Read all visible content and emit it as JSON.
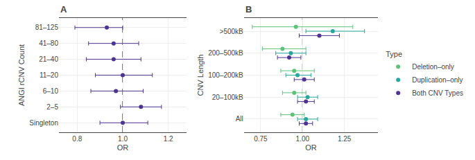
{
  "chart_data": [
    {
      "type": "forest",
      "title": "A",
      "xlabel": "OR",
      "ylabel": "ANGI rCNV Count",
      "xlim": [
        0.72,
        1.28
      ],
      "xticks": [
        0.8,
        {
          "value": 1.0,
          "label": "1.0"
        },
        1.2
      ],
      "vline": 1.0,
      "grid": true,
      "categories": [
        "81–125",
        "41–80",
        "21–40",
        "11–20",
        "6–10",
        "2–5",
        "Singleton"
      ],
      "series": [
        {
          "color": "#4e3391",
          "values": [
            0.93,
            0.96,
            0.96,
            1.0,
            0.97,
            1.08,
            1.0
          ],
          "low": [
            0.79,
            0.85,
            0.84,
            0.88,
            0.86,
            0.99,
            0.9
          ],
          "high": [
            1.0,
            1.07,
            1.08,
            1.13,
            1.09,
            1.17,
            1.11
          ]
        }
      ]
    },
    {
      "type": "forest",
      "title": "B",
      "xlabel": "OR",
      "ylabel": "CNV Length",
      "xlim": [
        0.65,
        1.45
      ],
      "xticks": [
        0.75,
        {
          "value": 1.0,
          "label": "1.00"
        },
        1.25
      ],
      "vline": 1.0,
      "grid": true,
      "legend": "right",
      "legend_title": "Type",
      "categories": [
        ">500kB",
        "200–500kB",
        "100–200kB",
        "20–100kB",
        "All"
      ],
      "series": [
        {
          "name": "Deletion–only",
          "color": "#5ec27a",
          "values": [
            0.96,
            0.88,
            0.95,
            0.95,
            0.94
          ],
          "low": [
            0.7,
            0.76,
            0.87,
            0.88,
            0.87
          ],
          "high": [
            1.3,
            1.02,
            1.07,
            1.02,
            1.01
          ]
        },
        {
          "name": "Duplication–only",
          "color": "#27a89e",
          "values": [
            1.18,
            0.93,
            0.97,
            1.03,
            1.02
          ],
          "low": [
            1.02,
            0.84,
            0.9,
            0.97,
            0.97
          ],
          "high": [
            1.37,
            1.02,
            1.05,
            1.09,
            1.09
          ]
        },
        {
          "name": "Both CNV Types",
          "color": "#4e3391",
          "values": [
            1.1,
            0.92,
            1.01,
            1.02,
            1.02
          ],
          "low": [
            0.98,
            0.85,
            0.95,
            0.97,
            0.98
          ],
          "high": [
            1.22,
            0.99,
            1.07,
            1.07,
            1.06
          ]
        }
      ]
    }
  ]
}
